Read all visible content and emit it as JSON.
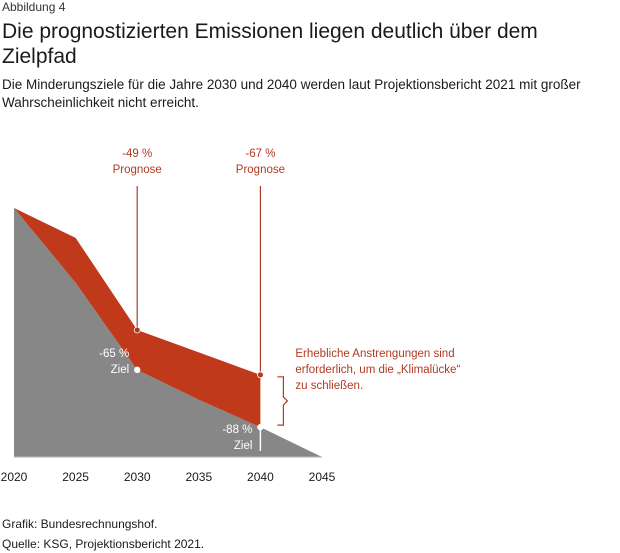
{
  "figure_label": "Abbildung 4",
  "title": "Die prognostizierten Emissionen liegen deutlich über dem Zielpfad",
  "subtitle": "Die Minderungsziele für die Jahre 2030 und 2040 werden laut Projektionsbericht 2021 mit großer Wahrscheinlichkeit nicht erreicht.",
  "colors": {
    "target_area": "#878787",
    "gap_area": "#c0391b",
    "annotation": "#b03a22",
    "text": "#1a1a1a"
  },
  "chart_data": {
    "type": "area",
    "x": [
      2020,
      2025,
      2030,
      2035,
      2040,
      2045
    ],
    "xlim": [
      2020,
      2045
    ],
    "ylim": [
      -100,
      0
    ],
    "series": [
      {
        "role": "target",
        "x": [
          2020,
          2025,
          2030,
          2035,
          2040,
          2045
        ],
        "y": [
          0,
          -30,
          -65,
          -77,
          -88,
          -100
        ]
      },
      {
        "role": "forecast",
        "x": [
          2020,
          2025,
          2030,
          2035,
          2040
        ],
        "y": [
          0,
          -12,
          -49,
          -58,
          -67
        ]
      }
    ],
    "xtick_labels": [
      "2020",
      "2025",
      "2030",
      "2035",
      "2040",
      "2045"
    ],
    "grid": false,
    "legend": "none",
    "annotations": {
      "forecast_2030": {
        "x": 2030,
        "y": -49,
        "value": "-49 %",
        "label": "Prognose"
      },
      "forecast_2040": {
        "x": 2040,
        "y": -67,
        "value": "-67 %",
        "label": "Prognose"
      },
      "target_2030": {
        "x": 2030,
        "y": -65,
        "value": "-65 %",
        "label": "Ziel"
      },
      "target_2040": {
        "x": 2040,
        "y": -88,
        "value": "-88 %",
        "label": "Ziel"
      },
      "gap": {
        "lines": [
          "Erhebliche Anstrengungen sind",
          "erforderlich, um die „Klimalücke“",
          "zu schließen."
        ]
      }
    }
  },
  "footer": {
    "graphic": "Grafik: Bundesrechnungshof.",
    "source": "Quelle: KSG, Projektionsbericht 2021."
  }
}
